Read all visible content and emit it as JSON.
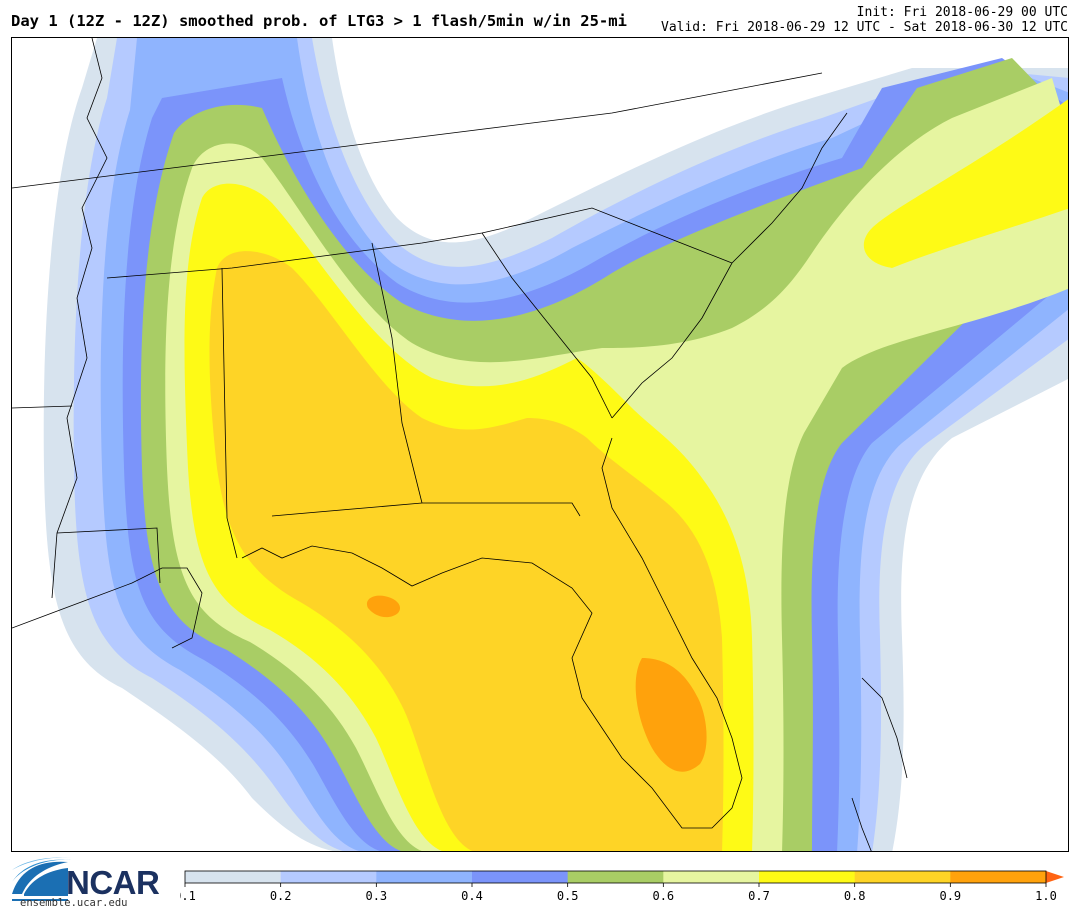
{
  "header": {
    "title": "Day 1 (12Z - 12Z) smoothed prob. of LTG3 > 1 flash/5min w/in 25-mi",
    "init": "Init: Fri 2018-06-29 00 UTC",
    "valid": "Valid: Fri 2018-06-29 12 UTC - Sat 2018-06-30 12 UTC"
  },
  "colors": {
    "bins": [
      "#d7e3ee",
      "#b5caff",
      "#8fb4fe",
      "#7b94fa",
      "#a9cd65",
      "#e6f5a0",
      "#fefa16",
      "#fed426",
      "#ffa20c",
      "#ff6413"
    ]
  },
  "colorbar": {
    "ticks": [
      "0.1",
      "0.2",
      "0.3",
      "0.4",
      "0.5",
      "0.6",
      "0.7",
      "0.8",
      "0.9",
      "1.0"
    ]
  },
  "logo": {
    "name": "NCAR",
    "url": "ensemble.ucar.edu"
  }
}
